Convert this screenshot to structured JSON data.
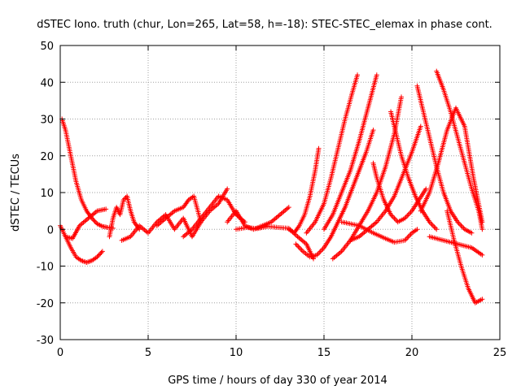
{
  "chart_data": {
    "type": "scatter",
    "title": "dSTEC Iono. truth (chur, Lon=265, Lat=58, h=-18): STEC-STEC_elemax in phase cont.",
    "xlabel": "GPS time / hours of day 330 of year 2014",
    "ylabel": "dSTEC  / TECUs",
    "xlim": [
      0,
      25
    ],
    "ylim": [
      -30,
      50
    ],
    "xticks": [
      "0",
      "5",
      "10",
      "15",
      "20",
      "25"
    ],
    "yticks": [
      "-30",
      "-20",
      "-10",
      "0",
      "10",
      "20",
      "30",
      "40",
      "50"
    ],
    "grid": true,
    "marker": "+",
    "color": "#ff0000",
    "series": [
      {
        "x": [
          0.1,
          0.3,
          0.6,
          0.9,
          1.2,
          1.5,
          1.8,
          2.1,
          2.4,
          2.7,
          3.0
        ],
        "y": [
          30,
          27,
          20,
          13,
          8,
          5,
          3,
          1.5,
          0.8,
          0.5,
          0.3
        ]
      },
      {
        "x": [
          0.0,
          0.3,
          0.6,
          0.9,
          1.2,
          1.5,
          1.8,
          2.1,
          2.4
        ],
        "y": [
          1,
          -2,
          -5,
          -7.5,
          -8.5,
          -9,
          -8.5,
          -7.5,
          -6
        ]
      },
      {
        "x": [
          0.3,
          0.7,
          1.1,
          1.6,
          2.1,
          2.6
        ],
        "y": [
          -2,
          -2.5,
          1,
          3,
          5,
          5.5
        ]
      },
      {
        "x": [
          2.8,
          3.0,
          3.2,
          3.4,
          3.6,
          3.8,
          4.0,
          4.2,
          4.5
        ],
        "y": [
          -2,
          3,
          6,
          4,
          8,
          9,
          5,
          2,
          0
        ]
      },
      {
        "x": [
          3.5,
          4.0,
          4.5,
          5.0,
          5.5,
          6.0,
          6.5,
          7.0,
          7.5,
          8.0
        ],
        "y": [
          -3,
          -2,
          1,
          -1,
          2,
          4,
          0,
          3,
          -2,
          2
        ]
      },
      {
        "x": [
          5.5,
          6.0,
          6.5,
          7.0,
          7.3,
          7.6,
          8.0,
          8.5,
          9.0,
          9.5
        ],
        "y": [
          1,
          3,
          5,
          6,
          8,
          9,
          2,
          5,
          7,
          11
        ]
      },
      {
        "x": [
          7.0,
          7.5,
          8.0,
          8.5,
          9.0,
          9.5,
          10.0,
          10.5
        ],
        "y": [
          -2,
          0,
          3,
          6,
          9,
          8,
          4,
          2
        ]
      },
      {
        "x": [
          9.5,
          10.0,
          10.5,
          11.0,
          11.5,
          12.0,
          12.5,
          13.0
        ],
        "y": [
          2,
          5,
          1,
          0,
          1,
          2,
          4,
          6
        ]
      },
      {
        "x": [
          10.0,
          10.6,
          11.2,
          11.8,
          12.4,
          13.0,
          13.5,
          14.0,
          14.4
        ],
        "y": [
          0,
          0.5,
          0.2,
          0.8,
          0.5,
          0.3,
          -2,
          -4,
          -8
        ]
      },
      {
        "x": [
          13.0,
          13.3,
          13.6,
          13.9,
          14.2,
          14.5,
          14.7
        ],
        "y": [
          0,
          -1,
          1,
          4,
          9,
          16,
          22
        ]
      },
      {
        "x": [
          13.4,
          13.8,
          14.2,
          14.6,
          15.0,
          15.4,
          15.8,
          16.2,
          16.6,
          17.0,
          17.4,
          17.8
        ],
        "y": [
          -4,
          -6,
          -7.5,
          -7,
          -5,
          -2,
          2,
          6,
          11,
          16,
          21,
          27
        ]
      },
      {
        "x": [
          14.0,
          14.5,
          15.0,
          15.4,
          15.8,
          16.2,
          16.6,
          16.9
        ],
        "y": [
          -1,
          2,
          7,
          14,
          22,
          30,
          37,
          42
        ]
      },
      {
        "x": [
          15.0,
          15.5,
          16.0,
          16.5,
          17.0,
          17.5,
          18.0
        ],
        "y": [
          0,
          4,
          10,
          16,
          24,
          33,
          42
        ]
      },
      {
        "x": [
          15.5,
          16.0,
          16.5,
          17.0,
          17.5,
          18.0,
          18.5,
          19.0,
          19.4
        ],
        "y": [
          -8,
          -6,
          -3,
          1,
          5,
          10,
          17,
          26,
          36
        ]
      },
      {
        "x": [
          16.5,
          17.0,
          17.5,
          18.0,
          18.5,
          19.0,
          19.5,
          20.0,
          20.5
        ],
        "y": [
          -3,
          -2,
          0,
          2,
          5,
          9,
          15,
          21,
          28
        ]
      },
      {
        "x": [
          16.0,
          17.0,
          17.8,
          18.5,
          19.0,
          19.6,
          20.0,
          20.3
        ],
        "y": [
          2,
          1,
          -1,
          -2.5,
          -3.5,
          -3,
          -1,
          0
        ]
      },
      {
        "x": [
          17.8,
          18.0,
          18.4,
          18.8,
          19.2,
          19.6,
          20.0,
          20.4,
          20.8
        ],
        "y": [
          18,
          14,
          8,
          4,
          2,
          3,
          5,
          8,
          11
        ]
      },
      {
        "x": [
          18.8,
          19.0,
          19.4,
          19.8,
          20.2,
          20.6,
          21.0,
          21.4
        ],
        "y": [
          32,
          28,
          20,
          14,
          9,
          5,
          2,
          0
        ]
      },
      {
        "x": [
          20.3,
          20.6,
          21.0,
          21.4,
          21.8,
          22.2,
          22.6,
          23.0,
          23.4
        ],
        "y": [
          39,
          33,
          25,
          17,
          10,
          5,
          2,
          0,
          -1
        ]
      },
      {
        "x": [
          21.4,
          21.8,
          22.2,
          22.6,
          23.0,
          23.4,
          23.8,
          24.0
        ],
        "y": [
          43,
          38,
          32,
          25,
          18,
          11,
          5,
          0
        ]
      },
      {
        "x": [
          20.5,
          21.0,
          21.5,
          22.0,
          22.5,
          23.0,
          23.5,
          24.0
        ],
        "y": [
          5,
          10,
          18,
          27,
          33,
          28,
          14,
          2
        ]
      },
      {
        "x": [
          22.0,
          22.4,
          22.8,
          23.2,
          23.6,
          24.0
        ],
        "y": [
          5,
          -3,
          -10,
          -16,
          -20,
          -19
        ]
      },
      {
        "x": [
          21.0,
          21.8,
          22.6,
          23.4,
          24.0
        ],
        "y": [
          -2,
          -3,
          -4,
          -5,
          -7
        ]
      }
    ]
  }
}
